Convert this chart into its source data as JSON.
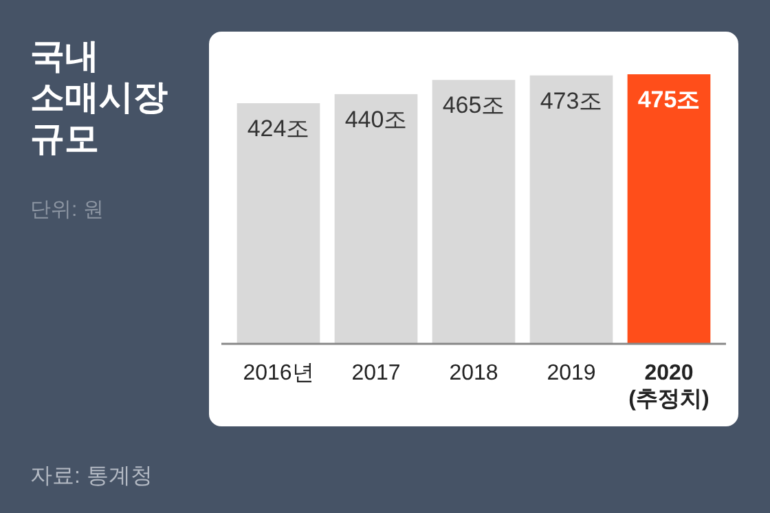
{
  "chart_data": {
    "type": "bar",
    "title": "국내 소매시장 규모",
    "subtitle": "단위: 원",
    "categories": [
      "2016년",
      "2017",
      "2018",
      "2019",
      "2020 (추정치)"
    ],
    "values": [
      424,
      440,
      465,
      473,
      475
    ],
    "value_labels": [
      "424조",
      "440조",
      "465조",
      "473조",
      "475조"
    ],
    "colors": [
      "#d9d9d9",
      "#d9d9d9",
      "#d9d9d9",
      "#d9d9d9",
      "#ff4e1a"
    ],
    "annotations": [
      "자료: 통계청"
    ]
  }
}
